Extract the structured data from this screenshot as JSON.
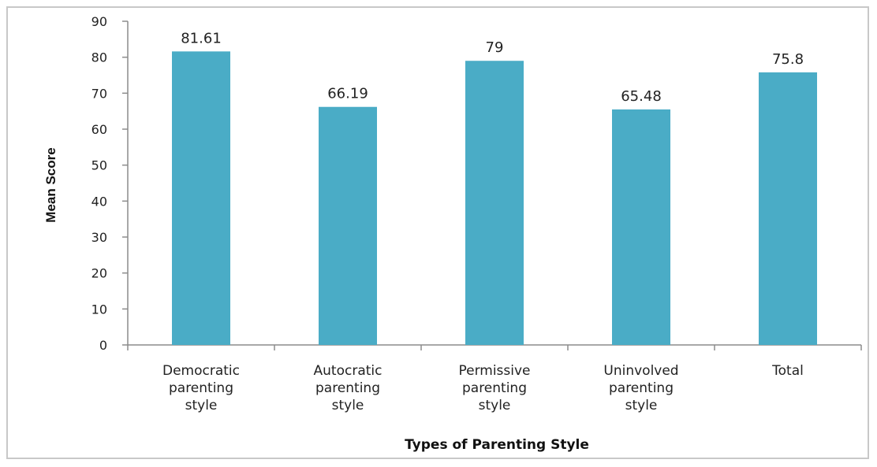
{
  "chart_data": {
    "type": "bar",
    "categories": [
      "Democratic parenting style",
      "Autocratic parenting style",
      "Permissive parenting style",
      "Uninvolved parenting style",
      "Total"
    ],
    "category_lines": [
      [
        "Democratic",
        "parenting",
        "style"
      ],
      [
        "Autocratic",
        "parenting",
        "style"
      ],
      [
        "Permissive",
        "parenting",
        "style"
      ],
      [
        "Uninvolved",
        "parenting",
        "style"
      ],
      [
        "Total"
      ]
    ],
    "values": [
      81.61,
      66.19,
      79,
      65.48,
      75.8
    ],
    "data_labels": [
      "81.61",
      "66.19",
      "79",
      "65.48",
      "75.8"
    ],
    "yticks": [
      0,
      10,
      20,
      30,
      40,
      50,
      60,
      70,
      80,
      90
    ],
    "ylim": [
      0,
      90
    ],
    "xlabel": "Types of Parenting Style",
    "ylabel": "Mean Score",
    "bar_color": "#4aacc6",
    "grid": false,
    "legend": false
  }
}
